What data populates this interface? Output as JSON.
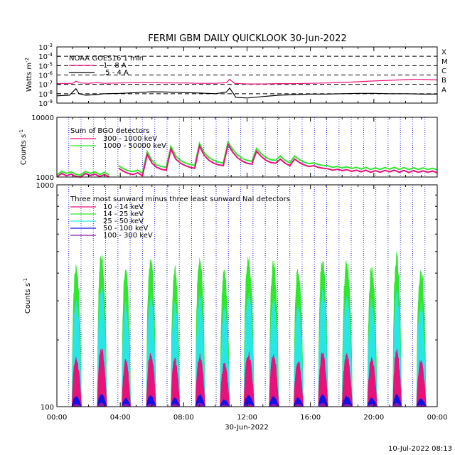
{
  "title": "FERMI GBM DAILY QUICKLOOK   30-Jun-2022",
  "footer_timestamp": "10-Jul-2022 08:13",
  "x_axis": {
    "tick_labels": [
      "00:00",
      "04:00",
      "08:00",
      "12:00",
      "16:00",
      "20:00",
      "00:00"
    ],
    "date_label": "30-Jun-2022",
    "range_hours": [
      0,
      24
    ]
  },
  "panels": {
    "goes": {
      "ylabel_base": "Watts m",
      "ylabel_exp": "-2",
      "tick_labels": [
        {
          "base": "10",
          "exp": "-3"
        },
        {
          "base": "10",
          "exp": "-4"
        },
        {
          "base": "10",
          "exp": "-5"
        },
        {
          "base": "10",
          "exp": "-6"
        },
        {
          "base": "10",
          "exp": "-7"
        },
        {
          "base": "10",
          "exp": "-8"
        },
        {
          "base": "10",
          "exp": "-9"
        }
      ],
      "flare_classes": [
        "X",
        "M",
        "C",
        "B",
        "A"
      ],
      "legend_title": "NOAA GOES16 1 min",
      "legend": [
        {
          "label": "1 - 8 A",
          "color": "#e8127a"
        },
        {
          "label": ".5 - 4 A",
          "color": "#000000"
        }
      ]
    },
    "bgo": {
      "ylabel_base": "Counts s",
      "ylabel_exp": "-1",
      "tick_labels": [
        "10000",
        "1000"
      ],
      "legend_title": "Sum of BGO detectors",
      "legend": [
        {
          "label": "300 - 1000 keV",
          "color": "#e8127a"
        },
        {
          "label": "1000 - 50000 keV",
          "color": "#2ee82e"
        }
      ]
    },
    "nai": {
      "ylabel_base": "Counts s",
      "ylabel_exp": "-1",
      "tick_labels": [
        "1000",
        "100"
      ],
      "legend_title": "Three most sunward minus three least sunward NaI detectors",
      "legend": [
        {
          "label": "10 - 14 keV",
          "color": "#e8127a"
        },
        {
          "label": "14 - 25 keV",
          "color": "#2ee82e"
        },
        {
          "label": "25 - 50 keV",
          "color": "#29e6e6"
        },
        {
          "label": "50 - 100 keV",
          "color": "#1010e8"
        },
        {
          "label": "100 - 300 keV",
          "color": "#8a1aa8"
        }
      ]
    }
  },
  "chart_data": [
    {
      "type": "line",
      "panel": "goes",
      "yscale": "log",
      "ylim": [
        1e-09,
        0.001
      ],
      "xlim": [
        0,
        24
      ],
      "x_unit": "hours UT",
      "class_levels": [
        0.0001,
        1e-05,
        1e-06,
        1e-07,
        1e-08
      ],
      "series": [
        {
          "name": "1 - 8 A",
          "color": "#e8127a",
          "x": [
            0,
            1,
            1.2,
            1.5,
            2,
            2.5,
            3,
            4,
            5,
            6,
            7,
            8,
            9,
            10,
            10.7,
            10.9,
            11.2,
            12,
            13,
            14,
            15,
            16,
            17,
            18,
            19,
            20,
            21,
            22,
            22.5,
            23,
            23.5,
            24
          ],
          "values": [
            1.2e-07,
            1.3e-07,
            2.2e-07,
            1.4e-07,
            1.3e-07,
            1.5e-07,
            1.3e-07,
            1.4e-07,
            1.5e-07,
            1.5e-07,
            1.4e-07,
            1.4e-07,
            1.3e-07,
            1.3e-07,
            1.5e-07,
            3.5e-07,
            1.3e-07,
            1.1e-07,
            1.1e-07,
            1.2e-07,
            1.2e-07,
            1.3e-07,
            1.4e-07,
            1.6e-07,
            1.9e-07,
            2.3e-07,
            2.7e-07,
            3.2e-07,
            3.4e-07,
            3.4e-07,
            3.2e-07,
            3e-07
          ]
        },
        {
          "name": ".5 - 4 A",
          "color": "#000000",
          "x": [
            0,
            0.8,
            1.2,
            1.4,
            1.8,
            2.5,
            3,
            4,
            5,
            6,
            7,
            8,
            9,
            10,
            10.7,
            10.9,
            11.3,
            12,
            13,
            14,
            15,
            16,
            17,
            18,
            19,
            20,
            21,
            22,
            23,
            24
          ],
          "values": [
            6e-09,
            7e-09,
            3.5e-08,
            1e-08,
            7e-09,
            8e-09,
            1e-08,
            1.1e-08,
            1.3e-08,
            1.6e-08,
            1.5e-08,
            1.3e-08,
            1.2e-08,
            1e-08,
            1.5e-08,
            4e-08,
            4e-09,
            3.5e-09,
            5e-09,
            7e-09,
            8e-09,
            9e-09,
            9e-09,
            1e-08,
            1.1e-08,
            1.1e-08,
            1e-08,
            1e-08,
            9e-09,
            9e-09
          ]
        }
      ]
    },
    {
      "type": "line",
      "panel": "bgo",
      "yscale": "log",
      "ylim": [
        1000,
        10000
      ],
      "xlim": [
        0,
        24
      ],
      "x_unit": "hours UT",
      "series": [
        {
          "name": "300 - 1000 keV",
          "color": "#e8127a",
          "x": [
            0.0,
            0.3,
            0.6,
            0.9,
            1.2,
            1.5,
            1.8,
            2.1,
            2.4,
            2.7,
            3.0,
            3.3,
            3.6,
            3.9,
            4.2,
            4.5,
            4.8,
            5.1,
            5.4,
            5.7,
            6.0,
            6.3,
            6.6,
            6.9,
            7.2,
            7.5,
            7.8,
            8.1,
            8.4,
            8.7,
            9.0,
            9.3,
            9.6,
            9.9,
            10.2,
            10.5,
            10.8,
            11.1,
            11.4,
            11.7,
            12.0,
            12.3,
            12.6,
            12.9,
            13.2,
            13.5,
            13.8,
            14.1,
            14.4,
            14.7,
            15.0,
            15.3,
            15.6,
            15.9,
            16.2,
            16.5,
            16.8,
            17.1,
            17.4,
            17.7,
            18.0,
            18.3,
            18.6,
            18.9,
            19.2,
            19.5,
            19.8,
            20.1,
            20.4,
            20.7,
            21.0,
            21.3,
            21.6,
            21.9,
            22.2,
            22.5,
            22.8,
            23.1,
            23.4,
            23.7,
            24.0
          ],
          "values": [
            1000,
            1150,
            1050,
            1120,
            1020,
            1000,
            1150,
            1060,
            1120,
            1020,
            1100,
            1000,
            null,
            1400,
            1250,
            1150,
            1100,
            1180,
            1050,
            2400,
            1700,
            1450,
            1350,
            1300,
            2950,
            2000,
            1700,
            1550,
            1450,
            1400,
            3300,
            2300,
            1900,
            1700,
            1600,
            1550,
            3500,
            2600,
            2100,
            1850,
            1700,
            1650,
            2700,
            2200,
            1900,
            1750,
            1700,
            2000,
            1700,
            1550,
            2000,
            1750,
            1600,
            1500,
            1550,
            1450,
            1400,
            1380,
            1300,
            1350,
            1280,
            1330,
            1250,
            1300,
            1220,
            1300,
            1200,
            1280,
            1200,
            1290,
            1220,
            1300,
            1200,
            1290,
            1190,
            1280,
            1200,
            1270,
            1200,
            1260,
            1180
          ]
        },
        {
          "name": "1000 - 50000 keV",
          "color": "#2ee82e",
          "x": [
            0.0,
            0.3,
            0.6,
            0.9,
            1.2,
            1.5,
            1.8,
            2.1,
            2.4,
            2.7,
            3.0,
            3.3,
            3.6,
            3.9,
            4.2,
            4.5,
            4.8,
            5.1,
            5.4,
            5.7,
            6.0,
            6.3,
            6.6,
            6.9,
            7.2,
            7.5,
            7.8,
            8.1,
            8.4,
            8.7,
            9.0,
            9.3,
            9.6,
            9.9,
            10.2,
            10.5,
            10.8,
            11.1,
            11.4,
            11.7,
            12.0,
            12.3,
            12.6,
            12.9,
            13.2,
            13.5,
            13.8,
            14.1,
            14.4,
            14.7,
            15.0,
            15.3,
            15.6,
            15.9,
            16.2,
            16.5,
            16.8,
            17.1,
            17.4,
            17.7,
            18.0,
            18.3,
            18.6,
            18.9,
            19.2,
            19.5,
            19.8,
            20.1,
            20.4,
            20.7,
            21.0,
            21.3,
            21.6,
            21.9,
            22.2,
            22.5,
            22.8,
            23.1,
            23.4,
            23.7,
            24.0
          ],
          "values": [
            1080,
            1250,
            1150,
            1220,
            1100,
            1080,
            1250,
            1150,
            1220,
            1100,
            1200,
            1080,
            null,
            1550,
            1380,
            1280,
            1230,
            1300,
            1160,
            2650,
            1900,
            1600,
            1500,
            1450,
            3250,
            2250,
            1900,
            1720,
            1620,
            1560,
            3650,
            2550,
            2120,
            1900,
            1780,
            1720,
            3850,
            2900,
            2350,
            2050,
            1900,
            1830,
            3000,
            2450,
            2120,
            1950,
            1900,
            2250,
            1900,
            1730,
            2250,
            1950,
            1780,
            1680,
            1730,
            1620,
            1560,
            1540,
            1450,
            1500,
            1420,
            1480,
            1390,
            1450,
            1360,
            1450,
            1340,
            1420,
            1340,
            1440,
            1360,
            1450,
            1340,
            1440,
            1330,
            1430,
            1340,
            1420,
            1340,
            1400,
            1320
          ]
        }
      ]
    },
    {
      "type": "line",
      "panel": "nai",
      "yscale": "log",
      "ylim": [
        100,
        1000
      ],
      "xlim": [
        0,
        24
      ],
      "x_unit": "hours UT",
      "sunlit_intervals": [
        [
          0.95,
          1.55
        ],
        [
          2.55,
          3.15
        ],
        [
          4.1,
          4.65
        ],
        [
          5.65,
          6.25
        ],
        [
          7.2,
          7.75
        ],
        [
          8.75,
          9.35
        ],
        [
          10.3,
          10.9
        ],
        [
          11.8,
          12.45
        ],
        [
          13.4,
          14.0
        ],
        [
          14.95,
          15.55
        ],
        [
          16.5,
          17.1
        ],
        [
          18.0,
          18.65
        ],
        [
          19.6,
          20.2
        ],
        [
          21.2,
          21.75
        ],
        [
          22.7,
          23.3
        ]
      ],
      "series": [
        {
          "name": "10 - 14 keV",
          "color": "#e8127a",
          "peak_per_orbit": [
            170,
            190,
            165,
            180,
            170,
            175,
            160,
            180,
            175,
            165,
            180,
            175,
            170,
            185,
            165
          ]
        },
        {
          "name": "14 - 25 keV",
          "color": "#2ee82e",
          "peak_per_orbit": [
            450,
            510,
            440,
            480,
            440,
            480,
            420,
            490,
            470,
            440,
            490,
            470,
            450,
            500,
            440
          ]
        },
        {
          "name": "25 - 50 keV",
          "color": "#29e6e6",
          "peak_per_orbit": [
            310,
            350,
            300,
            330,
            300,
            330,
            290,
            340,
            320,
            300,
            340,
            320,
            310,
            345,
            300
          ]
        },
        {
          "name": "50 - 100 keV",
          "color": "#1010e8",
          "peak_per_orbit": [
            112,
            115,
            110,
            113,
            110,
            114,
            108,
            113,
            112,
            110,
            114,
            112,
            110,
            114,
            109
          ]
        },
        {
          "name": "100 - 300 keV",
          "color": "#8a1aa8",
          "peak_per_orbit": [
            103,
            104,
            103,
            103,
            103,
            104,
            102,
            103,
            103,
            103,
            104,
            103,
            103,
            104,
            102
          ]
        }
      ]
    }
  ]
}
